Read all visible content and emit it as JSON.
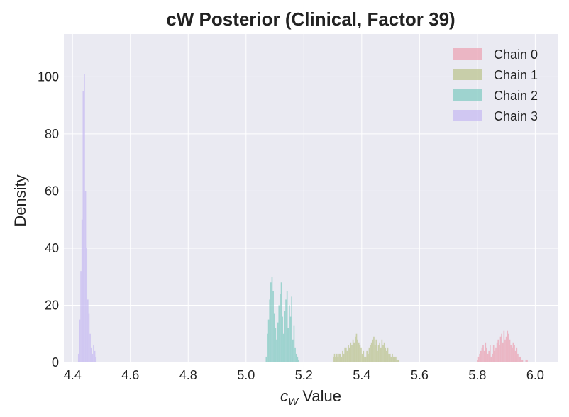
{
  "chart_data": {
    "type": "histogram",
    "title": "cW Posterior (Clinical, Factor 39)",
    "xlabel": {
      "symbol": "c",
      "subscript": "W",
      "suffix": " Value"
    },
    "ylabel": "Density",
    "xlim": [
      4.37,
      6.08
    ],
    "ylim": [
      0,
      115
    ],
    "xticks": [
      "4.4",
      "4.6",
      "4.8",
      "5.0",
      "5.2",
      "5.4",
      "5.6",
      "5.8",
      "6.0"
    ],
    "yticks": [
      "0",
      "20",
      "40",
      "60",
      "80",
      "100"
    ],
    "grid": true,
    "legend_position": "top-right",
    "bin_width": 0.004,
    "series": [
      {
        "name": "Chain 0",
        "color": "#eba0b0",
        "bin_start": 5.798,
        "densities": [
          1,
          2,
          3,
          4,
          5,
          6,
          4,
          7,
          5,
          3,
          4,
          6,
          2,
          3,
          6,
          4,
          5,
          7,
          8,
          6,
          9,
          10,
          7,
          11,
          8,
          9,
          11,
          10,
          8,
          6,
          5,
          7,
          6,
          4,
          5,
          3,
          2,
          2,
          1,
          1,
          0,
          0,
          1,
          1,
          0
        ]
      },
      {
        "name": "Chain 1",
        "color": "#b9c28a",
        "bin_start": 5.3,
        "densities": [
          2,
          3,
          2,
          3,
          2,
          3,
          3,
          2,
          4,
          3,
          5,
          5,
          4,
          6,
          5,
          7,
          6,
          8,
          7,
          9,
          10,
          8,
          7,
          6,
          5,
          3,
          4,
          2,
          2,
          4,
          3,
          5,
          6,
          7,
          8,
          9,
          6,
          8,
          4,
          6,
          7,
          5,
          8,
          6,
          7,
          5,
          4,
          5,
          3,
          3,
          2,
          3,
          2,
          2,
          2,
          1,
          1
        ]
      },
      {
        "name": "Chain 2",
        "color": "#7dc9c0",
        "bin_start": 5.068,
        "densities": [
          2,
          10,
          15,
          22,
          28,
          30,
          25,
          17,
          12,
          8,
          14,
          20,
          24,
          28,
          16,
          10,
          18,
          22,
          25,
          12,
          20,
          16,
          23,
          8,
          13,
          5,
          3,
          2,
          1
        ]
      },
      {
        "name": "Chain 3",
        "color": "#c4b8f2",
        "bin_start": 4.419,
        "densities": [
          3,
          15,
          32,
          50,
          95,
          101,
          60,
          40,
          22,
          17,
          10,
          5,
          3,
          6,
          4,
          2
        ]
      }
    ]
  }
}
